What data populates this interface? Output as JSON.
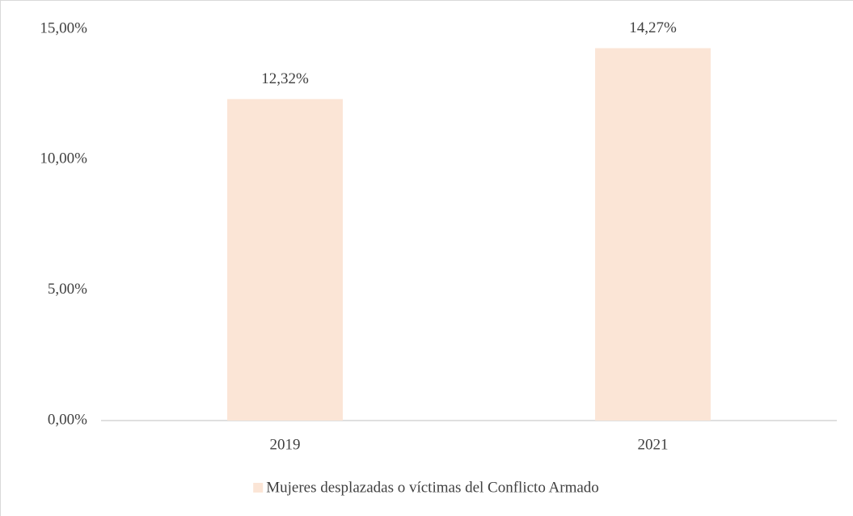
{
  "chart_data": {
    "type": "bar",
    "categories": [
      "2019",
      "2021"
    ],
    "series": [
      {
        "name": "Mujeres desplazadas o víctimas del Conflicto Armado",
        "color": "#fbe5d6",
        "values": [
          12.32,
          14.27
        ],
        "value_labels": [
          "12,32%",
          "14,27%"
        ]
      }
    ],
    "ylim": [
      0,
      15
    ],
    "yticks": [
      {
        "value": 0,
        "label": "0,00%"
      },
      {
        "value": 5,
        "label": "5,00%"
      },
      {
        "value": 10,
        "label": "10,00%"
      },
      {
        "value": 15,
        "label": "15,00%"
      }
    ],
    "grid": false,
    "legend": "bottom"
  }
}
